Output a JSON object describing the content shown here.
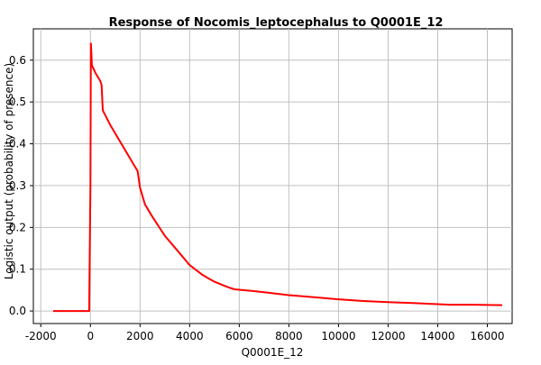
{
  "chart_data": {
    "type": "line",
    "title": "Response of Nocomis_leptocephalus to Q0001E_12",
    "xlabel": "Q0001E_12",
    "ylabel": "Logistic output (probability of presence)",
    "xlim": [
      -2300,
      17000
    ],
    "ylim": [
      -0.03,
      0.675
    ],
    "x_ticks": [
      -2000,
      0,
      2000,
      4000,
      6000,
      8000,
      10000,
      12000,
      14000,
      16000
    ],
    "x_tick_labels": [
      "-2000",
      "0",
      "2000",
      "4000",
      "6000",
      "8000",
      "10000",
      "12000",
      "14000",
      "16000"
    ],
    "y_ticks": [
      0.0,
      0.1,
      0.2,
      0.3,
      0.4,
      0.5,
      0.6
    ],
    "y_tick_labels": [
      "0.0",
      "0.1",
      "0.2",
      "0.3",
      "0.4",
      "0.5",
      "0.6"
    ],
    "grid": true,
    "line_color": "#ff0000",
    "series": [
      {
        "x": [
          -1500,
          -1000,
          -500,
          -50,
          0,
          20,
          40,
          60,
          200,
          400,
          450,
          500,
          800,
          1000,
          1500,
          1800,
          1900,
          2000,
          2200,
          2500,
          3000,
          3500,
          4000,
          4500,
          5000,
          5500,
          5800,
          6500,
          7000,
          8000,
          9000,
          10000,
          11000,
          12000,
          13000,
          13800,
          14500,
          15500,
          16600
        ],
        "y": [
          0.0,
          0.0,
          0.0,
          0.0,
          0.3,
          0.64,
          0.615,
          0.588,
          0.57,
          0.55,
          0.54,
          0.48,
          0.445,
          0.425,
          0.375,
          0.345,
          0.335,
          0.295,
          0.255,
          0.225,
          0.18,
          0.145,
          0.11,
          0.087,
          0.07,
          0.058,
          0.052,
          0.048,
          0.045,
          0.038,
          0.033,
          0.028,
          0.024,
          0.021,
          0.019,
          0.017,
          0.015,
          0.015,
          0.014
        ]
      }
    ]
  }
}
